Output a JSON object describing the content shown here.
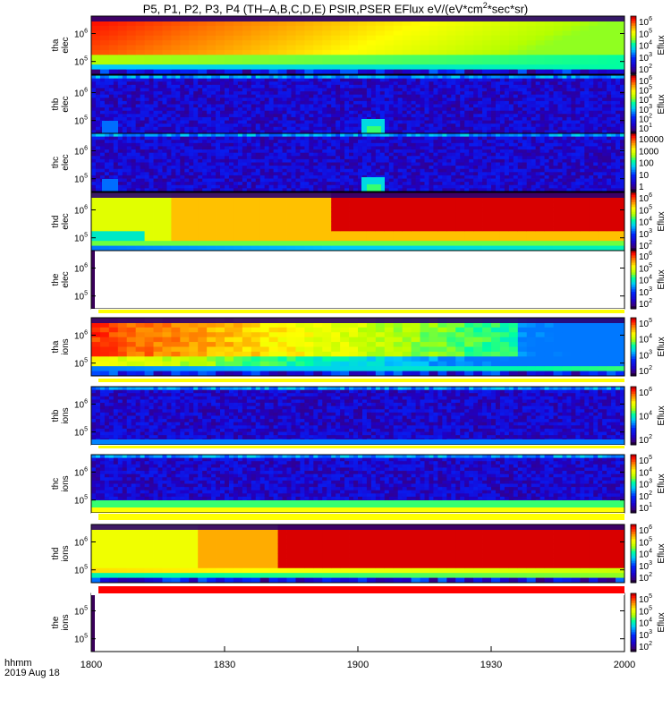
{
  "title": {
    "pre": "P5, P1, P2, P3, P4 (TH–A,B,C,D,E) PSIR,PSER EFlux eV/(eV*cm",
    "sup": "2",
    "post": "*sec*sr)"
  },
  "time_axis": {
    "ticks": [
      "1800",
      "1830",
      "1900",
      "1930",
      "2000"
    ],
    "label_line1": "hhmm",
    "label_line2": "2019 Aug 18"
  },
  "chart_data": {
    "type": "heatmap",
    "x_range": [
      "18:00",
      "20:00"
    ],
    "panels": [
      {
        "id": "tha-elec",
        "ylabel": [
          "tha",
          "elec"
        ],
        "yticks": [
          {
            "base": "10",
            "exp": "6"
          },
          {
            "base": "10",
            "exp": "5"
          }
        ],
        "colorbar": {
          "label": "Eflux",
          "ticks": [
            {
              "base": "10",
              "exp": "6"
            },
            {
              "base": "10",
              "exp": "5"
            },
            {
              "base": "10",
              "exp": "4"
            },
            {
              "base": "10",
              "exp": "3"
            },
            {
              "base": "10",
              "exp": "2"
            }
          ]
        },
        "pattern": "elec-a"
      },
      {
        "id": "thb-elec",
        "ylabel": [
          "thb",
          "elec"
        ],
        "yticks": [
          {
            "base": "10",
            "exp": "6"
          },
          {
            "base": "10",
            "exp": "5"
          }
        ],
        "colorbar": {
          "label": "Eflux",
          "ticks": [
            {
              "base": "10",
              "exp": "6"
            },
            {
              "base": "10",
              "exp": "5"
            },
            {
              "base": "10",
              "exp": "4"
            },
            {
              "base": "10",
              "exp": "3"
            },
            {
              "base": "10",
              "exp": "2"
            },
            {
              "base": "10",
              "exp": "1"
            }
          ]
        },
        "pattern": "sparse-b"
      },
      {
        "id": "thc-elec",
        "ylabel": [
          "thc",
          "elec"
        ],
        "yticks": [
          {
            "base": "10",
            "exp": "6"
          },
          {
            "base": "10",
            "exp": "5"
          }
        ],
        "colorbar": {
          "label": "",
          "ticks": [
            {
              "base": "10000",
              "exp": ""
            },
            {
              "base": "1000",
              "exp": ""
            },
            {
              "base": "100",
              "exp": ""
            },
            {
              "base": "10",
              "exp": ""
            },
            {
              "base": "1",
              "exp": ""
            }
          ]
        },
        "pattern": "sparse-c"
      },
      {
        "id": "thd-elec",
        "ylabel": [
          "thd",
          "elec"
        ],
        "yticks": [
          {
            "base": "10",
            "exp": "6"
          },
          {
            "base": "10",
            "exp": "5"
          }
        ],
        "colorbar": {
          "label": "Eflux",
          "ticks": [
            {
              "base": "10",
              "exp": "6"
            },
            {
              "base": "10",
              "exp": "5"
            },
            {
              "base": "10",
              "exp": "4"
            },
            {
              "base": "10",
              "exp": "3"
            },
            {
              "base": "10",
              "exp": "2"
            }
          ]
        },
        "pattern": "elec-d"
      },
      {
        "id": "the-elec",
        "ylabel": [
          "the",
          "elec"
        ],
        "yticks": [
          {
            "base": "10",
            "exp": "6"
          },
          {
            "base": "10",
            "exp": "5"
          }
        ],
        "colorbar": {
          "label": "Eflux",
          "ticks": [
            {
              "base": "10",
              "exp": "6"
            },
            {
              "base": "10",
              "exp": "5"
            },
            {
              "base": "10",
              "exp": "4"
            },
            {
              "base": "10",
              "exp": "3"
            },
            {
              "base": "10",
              "exp": "2"
            }
          ]
        },
        "pattern": "empty"
      },
      {
        "id": "tha-ions",
        "ylabel": [
          "tha",
          "ions"
        ],
        "yticks": [
          {
            "base": "10",
            "exp": "6"
          },
          {
            "base": "10",
            "exp": "5"
          }
        ],
        "colorbar": {
          "label": "Eflux",
          "ticks": [
            {
              "base": "10",
              "exp": "5"
            },
            {
              "base": "10",
              "exp": "4"
            },
            {
              "base": "10",
              "exp": "3"
            },
            {
              "base": "10",
              "exp": "2"
            }
          ]
        },
        "pattern": "ions-a"
      },
      {
        "id": "thb-ions",
        "ylabel": [
          "thb",
          "ions"
        ],
        "yticks": [
          {
            "base": "10",
            "exp": "6"
          },
          {
            "base": "10",
            "exp": "5"
          }
        ],
        "colorbar": {
          "label": "Eflux",
          "ticks": [
            {
              "base": "10",
              "exp": "6"
            },
            {
              "base": "10",
              "exp": "4"
            },
            {
              "base": "10",
              "exp": "2"
            }
          ]
        },
        "pattern": "sparse-ib"
      },
      {
        "id": "thc-ions",
        "ylabel": [
          "thc",
          "ions"
        ],
        "yticks": [
          {
            "base": "10",
            "exp": "6"
          },
          {
            "base": "10",
            "exp": "5"
          }
        ],
        "colorbar": {
          "label": "Eflux",
          "ticks": [
            {
              "base": "10",
              "exp": "5"
            },
            {
              "base": "10",
              "exp": "4"
            },
            {
              "base": "10",
              "exp": "3"
            },
            {
              "base": "10",
              "exp": "2"
            },
            {
              "base": "10",
              "exp": "1"
            }
          ]
        },
        "pattern": "sparse-ic"
      },
      {
        "id": "thd-ions",
        "ylabel": [
          "thd",
          "ions"
        ],
        "yticks": [
          {
            "base": "10",
            "exp": "6"
          },
          {
            "base": "10",
            "exp": "5"
          }
        ],
        "colorbar": {
          "label": "Eflux",
          "ticks": [
            {
              "base": "10",
              "exp": "6"
            },
            {
              "base": "10",
              "exp": "5"
            },
            {
              "base": "10",
              "exp": "4"
            },
            {
              "base": "10",
              "exp": "3"
            },
            {
              "base": "10",
              "exp": "2"
            }
          ]
        },
        "pattern": "ions-d"
      },
      {
        "id": "the-ions",
        "ylabel": [
          "the",
          "ions"
        ],
        "yticks": [
          {
            "base": "10",
            "exp": "5"
          },
          {
            "base": "10",
            "exp": "5"
          }
        ],
        "colorbar": {
          "label": "Eflux",
          "ticks": [
            {
              "base": "10",
              "exp": "5"
            },
            {
              "base": "10",
              "exp": "5"
            },
            {
              "base": "10",
              "exp": "4"
            },
            {
              "base": "10",
              "exp": "3"
            },
            {
              "base": "10",
              "exp": "2"
            }
          ]
        },
        "pattern": "empty"
      }
    ]
  }
}
